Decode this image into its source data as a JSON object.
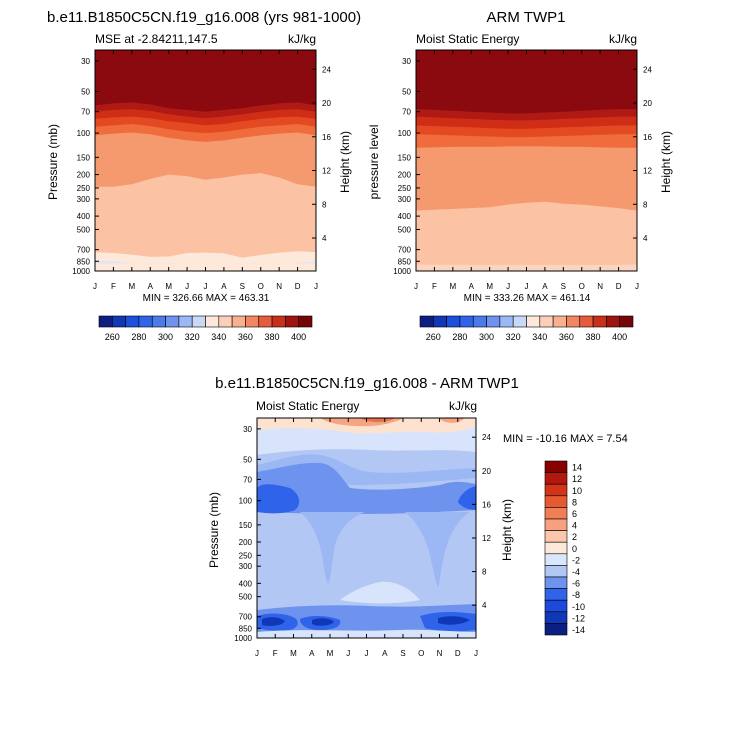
{
  "chart_data": [
    {
      "type": "heatmap",
      "id": "model",
      "title": "b.e11.B1850C5CN.f19_g16.008 (yrs 981-1000)",
      "left_label": "MSE at -2.84211,147.5",
      "units": "kJ/kg",
      "ylabel": "Pressure (mb)",
      "ylabel_right": "Height (km)",
      "months": [
        "J",
        "F",
        "M",
        "A",
        "M",
        "J",
        "J",
        "A",
        "S",
        "O",
        "N",
        "D",
        "J"
      ],
      "pressure_ticks": [
        "30",
        "50",
        "70",
        "100",
        "150",
        "200",
        "250",
        "300",
        "400",
        "500",
        "700",
        "850",
        "1000"
      ],
      "pressure_values": [
        30,
        50,
        70,
        100,
        150,
        200,
        250,
        300,
        400,
        500,
        700,
        850,
        1000
      ],
      "height_ticks": [
        "24",
        "20",
        "16",
        "12",
        "8",
        "4"
      ],
      "height_values": [
        24,
        20,
        16,
        12,
        8,
        4
      ],
      "stats": "MIN = 326.66 MAX = 463.31",
      "colorbar_labels": [
        "260",
        "280",
        "300",
        "320",
        "340",
        "360",
        "380",
        "400"
      ],
      "colorbar_levels": [
        260,
        270,
        280,
        290,
        300,
        310,
        320,
        330,
        340,
        350,
        360,
        370,
        380,
        390,
        400,
        410
      ],
      "boundaries": [
        {
          "level": 400,
          "p": [
            58,
            56,
            55,
            57,
            60,
            62,
            63,
            62,
            60,
            58,
            56,
            55,
            58
          ]
        },
        {
          "level": 390,
          "p": [
            63,
            61,
            60,
            62,
            66,
            68,
            70,
            68,
            66,
            63,
            61,
            60,
            63
          ]
        },
        {
          "level": 380,
          "p": [
            70,
            68,
            67,
            69,
            73,
            76,
            78,
            76,
            73,
            70,
            68,
            67,
            70
          ]
        },
        {
          "level": 370,
          "p": [
            79,
            77,
            76,
            78,
            82,
            85,
            88,
            86,
            82,
            79,
            77,
            76,
            79
          ]
        },
        {
          "level": 360,
          "p": [
            90,
            88,
            86,
            89,
            94,
            98,
            100,
            98,
            94,
            90,
            88,
            86,
            90
          ]
        },
        {
          "level": 350,
          "p": [
            104,
            101,
            99,
            102,
            108,
            113,
            116,
            113,
            108,
            104,
            101,
            99,
            104
          ]
        },
        {
          "level": 340,
          "p": [
            245,
            245,
            235,
            215,
            200,
            205,
            218,
            210,
            200,
            195,
            210,
            235,
            245
          ]
        },
        {
          "level": 330,
          "p": [
            730,
            740,
            760,
            790,
            785,
            740,
            735,
            745,
            800,
            765,
            735,
            720,
            730
          ]
        },
        {
          "level": 320,
          "p": [
            850,
            850,
            880,
            880,
            880,
            880,
            880,
            880,
            880,
            880,
            880,
            880,
            850
          ]
        }
      ]
    },
    {
      "type": "heatmap",
      "id": "obs",
      "title": "ARM TWP1",
      "left_label": "Moist Static Energy",
      "units": "kJ/kg",
      "ylabel": "pressure level",
      "ylabel_right": "Height (km)",
      "months": [
        "J",
        "F",
        "M",
        "A",
        "M",
        "J",
        "J",
        "A",
        "S",
        "O",
        "N",
        "D",
        "J"
      ],
      "pressure_ticks": [
        "30",
        "50",
        "70",
        "100",
        "150",
        "200",
        "250",
        "300",
        "400",
        "500",
        "700",
        "850",
        "1000"
      ],
      "pressure_values": [
        30,
        50,
        70,
        100,
        150,
        200,
        250,
        300,
        400,
        500,
        700,
        850,
        1000
      ],
      "height_ticks": [
        "24",
        "20",
        "16",
        "12",
        "8",
        "4"
      ],
      "height_values": [
        24,
        20,
        16,
        12,
        8,
        4
      ],
      "stats": "MIN = 333.26 MAX = 461.14",
      "colorbar_labels": [
        "260",
        "280",
        "300",
        "320",
        "340",
        "360",
        "380",
        "400"
      ],
      "colorbar_levels": [
        260,
        270,
        280,
        290,
        300,
        310,
        320,
        330,
        340,
        350,
        360,
        370,
        380,
        390,
        400,
        410
      ],
      "boundaries": [
        {
          "level": 400,
          "p": [
            60,
            61,
            62,
            63,
            64,
            65,
            65,
            64,
            63,
            62,
            61,
            60,
            60
          ]
        },
        {
          "level": 390,
          "p": [
            67,
            68,
            69,
            70,
            71,
            72,
            72,
            71,
            70,
            69,
            68,
            67,
            67
          ]
        },
        {
          "level": 380,
          "p": [
            76,
            77,
            78,
            79,
            80,
            81,
            81,
            80,
            79,
            78,
            77,
            76,
            76
          ]
        },
        {
          "level": 370,
          "p": [
            88,
            89,
            90,
            91,
            92,
            93,
            93,
            92,
            91,
            90,
            89,
            88,
            88
          ]
        },
        {
          "level": 360,
          "p": [
            102,
            103,
            104,
            105,
            106,
            107,
            107,
            106,
            105,
            104,
            103,
            102,
            102
          ]
        },
        {
          "level": 350,
          "p": [
            128,
            127,
            126,
            126,
            126,
            125,
            125,
            125,
            126,
            126,
            127,
            128,
            128
          ]
        },
        {
          "level": 340,
          "p": [
            365,
            360,
            355,
            350,
            345,
            330,
            320,
            315,
            325,
            330,
            340,
            350,
            365
          ]
        },
        {
          "level": 330,
          "p": [
            900,
            910,
            915,
            930,
            935,
            940,
            945,
            945,
            940,
            930,
            920,
            905,
            900
          ]
        }
      ]
    },
    {
      "type": "heatmap",
      "id": "diff",
      "title": "b.e11.B1850C5CN.f19_g16.008 - ARM TWP1",
      "left_label": "Moist Static Energy",
      "units": "kJ/kg",
      "ylabel": "Pressure (mb)",
      "ylabel_right": "Height (km)",
      "months": [
        "J",
        "F",
        "M",
        "A",
        "M",
        "J",
        "J",
        "A",
        "S",
        "O",
        "N",
        "D",
        "J"
      ],
      "pressure_ticks": [
        "30",
        "50",
        "70",
        "100",
        "150",
        "200",
        "250",
        "300",
        "400",
        "500",
        "700",
        "850",
        "1000"
      ],
      "pressure_values": [
        30,
        50,
        70,
        100,
        150,
        200,
        250,
        300,
        400,
        500,
        700,
        850,
        1000
      ],
      "height_ticks": [
        "24",
        "20",
        "16",
        "12",
        "8",
        "4"
      ],
      "height_values": [
        24,
        20,
        16,
        12,
        8,
        4
      ],
      "stats": "MIN = -10.16 MAX =  7.54",
      "colorbar_labels": [
        "14",
        "12",
        "10",
        "8",
        "6",
        "4",
        "2",
        "0",
        "-2",
        "-4",
        "-6",
        "-8",
        "-10",
        "-12",
        "-14"
      ],
      "colorbar_levels": [
        -14,
        -12,
        -10,
        -8,
        -6,
        -4,
        -2,
        0,
        2,
        4,
        6,
        8,
        10,
        12,
        14
      ],
      "xlabel": "",
      "xlim": [
        "J",
        "J"
      ],
      "ylim": [
        1000,
        25
      ]
    }
  ]
}
